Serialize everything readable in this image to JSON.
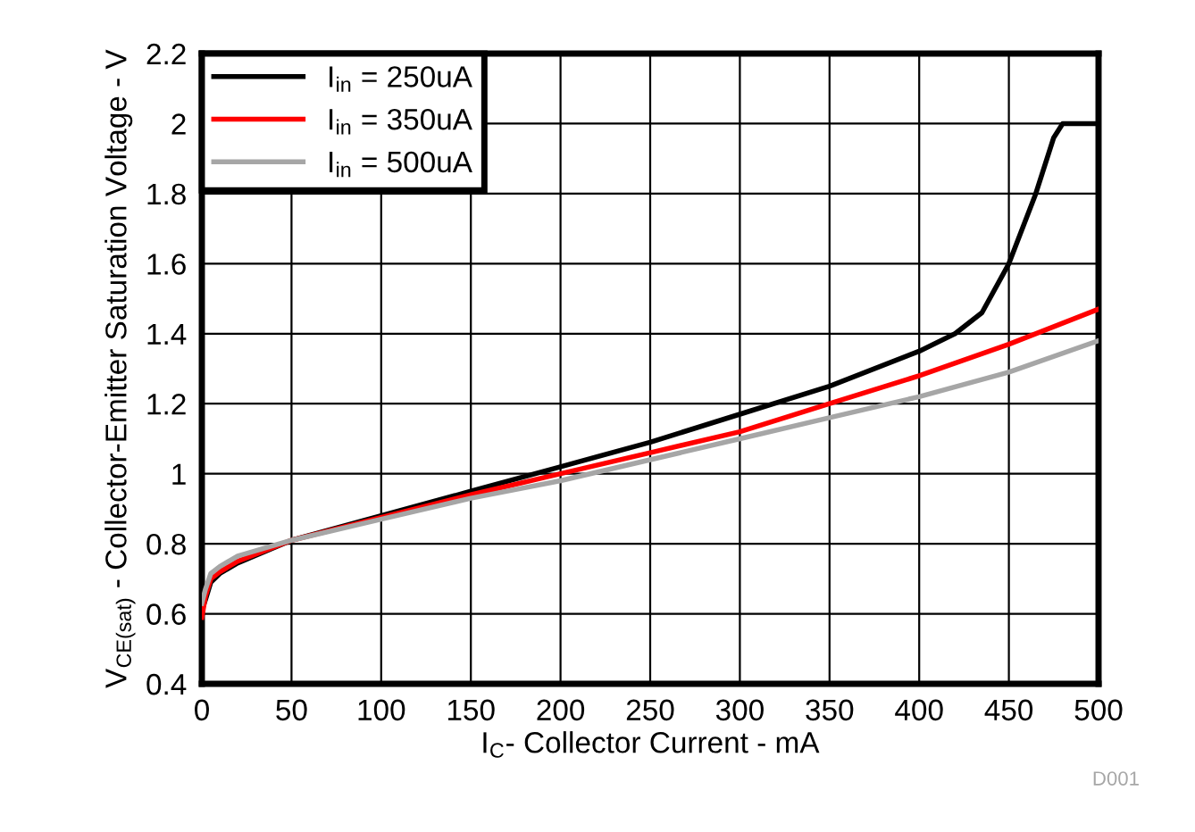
{
  "chart_data": {
    "type": "line",
    "xlabel": "I$_{C}$- Collector Current - mA",
    "ylabel": "V$_{CE(sat)}$ - Collector-Emitter Saturation Voltage - V",
    "annotations": [
      "D001"
    ],
    "series": [
      {
        "name": "I$_{in}$ = 250uA",
        "color": "#000000",
        "x": [
          0,
          2,
          5,
          10,
          20,
          50,
          100,
          150,
          200,
          250,
          300,
          350,
          400,
          420,
          435,
          450,
          465,
          475,
          480,
          500
        ],
        "values": [
          0.61,
          0.64,
          0.69,
          0.715,
          0.745,
          0.81,
          0.88,
          0.95,
          1.02,
          1.09,
          1.17,
          1.25,
          1.35,
          1.4,
          1.46,
          1.6,
          1.8,
          1.96,
          2.0,
          2.0
        ]
      },
      {
        "name": "I$_{in}$ = 350uA",
        "color": "#ff0000",
        "x": [
          0,
          2,
          5,
          10,
          20,
          50,
          100,
          150,
          200,
          250,
          300,
          350,
          400,
          450,
          500
        ],
        "values": [
          0.59,
          0.65,
          0.7,
          0.72,
          0.75,
          0.81,
          0.875,
          0.94,
          1.0,
          1.06,
          1.12,
          1.2,
          1.28,
          1.37,
          1.47
        ]
      },
      {
        "name": "I$_{in}$ = 500uA",
        "color": "#a6a6a6",
        "x": [
          0,
          2,
          5,
          10,
          20,
          50,
          100,
          150,
          200,
          250,
          300,
          350,
          400,
          450,
          500
        ],
        "values": [
          0.63,
          0.67,
          0.715,
          0.735,
          0.765,
          0.81,
          0.87,
          0.93,
          0.98,
          1.04,
          1.1,
          1.16,
          1.22,
          1.29,
          1.38
        ]
      }
    ],
    "xlim": [
      0,
      500
    ],
    "xticks": [
      0,
      50,
      100,
      150,
      200,
      250,
      300,
      350,
      400,
      450,
      500
    ],
    "ylim": [
      0.4,
      2.2
    ],
    "yticks": [
      0.4,
      0.6,
      0.8,
      1,
      1.2,
      1.4,
      1.6,
      1.8,
      2,
      2.2
    ],
    "grid": true,
    "legend": "top left",
    "marker": "none",
    "line_style": "solid"
  }
}
